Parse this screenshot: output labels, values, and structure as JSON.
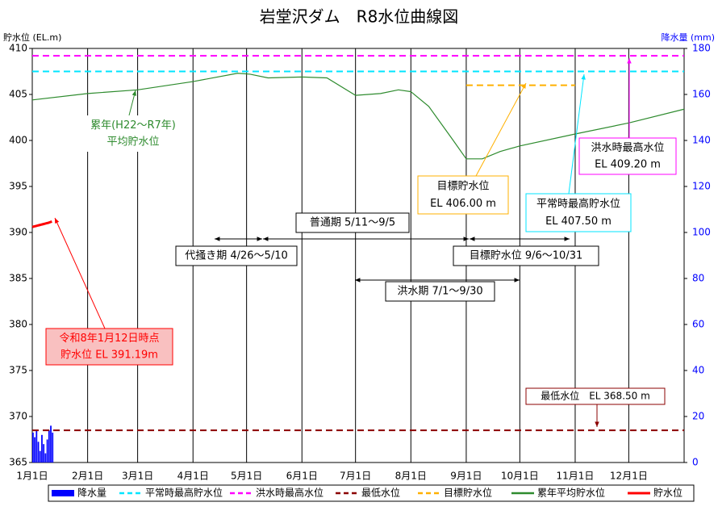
{
  "chart_data": {
    "type": "line",
    "title": "岩堂沢ダム　R8水位曲線図",
    "y_label": "貯水位 (EL.m)",
    "y2_label": "降水量 (mm)",
    "xlim": [
      0,
      365
    ],
    "xticks": [
      {
        "value": 0,
        "label": "1月1日"
      },
      {
        "value": 31,
        "label": "2月1日"
      },
      {
        "value": 59,
        "label": "3月1日"
      },
      {
        "value": 90,
        "label": "4月1日"
      },
      {
        "value": 120,
        "label": "5月1日"
      },
      {
        "value": 151,
        "label": "6月1日"
      },
      {
        "value": 181,
        "label": "7月1日"
      },
      {
        "value": 212,
        "label": "8月1日"
      },
      {
        "value": 243,
        "label": "9月1日"
      },
      {
        "value": 273,
        "label": "10月1日"
      },
      {
        "value": 304,
        "label": "11月1日"
      },
      {
        "value": 334,
        "label": "12月1日"
      }
    ],
    "ylim": [
      365,
      410
    ],
    "yticks": [
      365,
      370,
      375,
      380,
      385,
      390,
      395,
      400,
      405,
      410
    ],
    "y2lim": [
      0,
      180
    ],
    "y2ticks": [
      0,
      20,
      40,
      60,
      80,
      100,
      120,
      140,
      160,
      180
    ],
    "series": [
      {
        "name": "降水量",
        "type": "bar",
        "axis": "y2",
        "color": "#0000ff",
        "x": [
          0,
          1,
          2,
          3,
          4,
          5,
          6,
          7,
          8,
          9,
          10,
          11
        ],
        "values": [
          13,
          11,
          14,
          9,
          5,
          12,
          8,
          4,
          10,
          14,
          16,
          13
        ]
      },
      {
        "name": "平常時最高貯水位",
        "color": "#00e5ff",
        "dash": true,
        "x": [
          0,
          365
        ],
        "values": [
          407.5,
          407.5
        ]
      },
      {
        "name": "洪水時最高水位",
        "color": "#ff00ff",
        "dash": true,
        "x": [
          0,
          365
        ],
        "values": [
          409.2,
          409.2
        ]
      },
      {
        "name": "最低水位",
        "color": "#8b0000",
        "dash": true,
        "x": [
          0,
          365
        ],
        "values": [
          368.5,
          368.5
        ]
      },
      {
        "name": "目標貯水位",
        "color": "#ffb000",
        "dash": true,
        "x": [
          243,
          304
        ],
        "values": [
          406.0,
          406.0
        ]
      },
      {
        "name": "累年平均貯水位",
        "color": "#2e8b2e",
        "x": [
          0,
          31,
          59,
          90,
          115,
          122,
          132,
          151,
          165,
          181,
          195,
          205,
          212,
          222,
          235,
          243,
          252,
          262,
          273,
          304,
          334,
          365
        ],
        "values": [
          404.4,
          405.1,
          405.5,
          406.4,
          407.3,
          407.2,
          406.8,
          406.9,
          406.8,
          404.9,
          405.1,
          405.5,
          405.3,
          403.7,
          400.2,
          398.0,
          398.0,
          398.8,
          399.4,
          400.7,
          401.9,
          403.4
        ]
      },
      {
        "name": "貯水位",
        "color": "#ff0000",
        "width": 3,
        "x": [
          0,
          1,
          2,
          3,
          4,
          5,
          6,
          7,
          8,
          9,
          10,
          11
        ],
        "values": [
          390.6,
          390.65,
          390.7,
          390.75,
          390.8,
          390.85,
          390.9,
          390.95,
          391.0,
          391.05,
          391.12,
          391.19
        ]
      }
    ],
    "annotations": [
      {
        "lines": [
          "累年(H22～R7年)",
          "平均貯水位"
        ]
      },
      {
        "lines": [
          "令和8年1月12日時点",
          "貯水位 EL 391.19m"
        ]
      },
      {
        "lines": [
          "目標貯水位",
          "EL 406.00 m"
        ]
      },
      {
        "lines": [
          "平常時最高貯水位",
          "EL 407.50 m"
        ]
      },
      {
        "lines": [
          "洪水時最高水位",
          "EL 409.20 m"
        ]
      },
      {
        "lines": [
          "最低水位　EL 368.50 m"
        ]
      },
      {
        "lines": [
          "普通期 5/11～9/5"
        ]
      },
      {
        "lines": [
          "代掻き期 4/26～5/10"
        ]
      },
      {
        "lines": [
          "目標貯水位 9/6～10/31"
        ]
      },
      {
        "lines": [
          "洪水期 7/1～9/30"
        ]
      }
    ]
  }
}
